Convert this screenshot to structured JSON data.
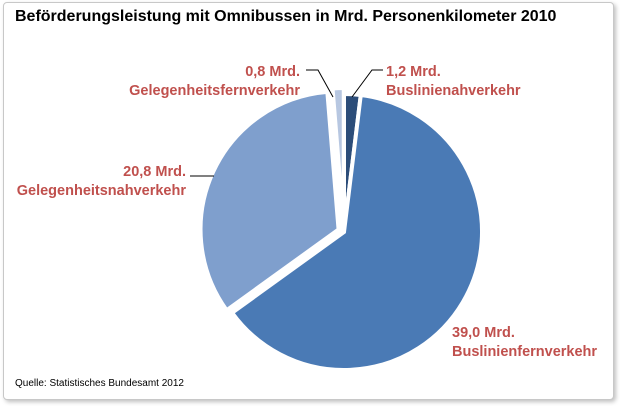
{
  "chart_data": {
    "type": "pie",
    "title": "Beförderungsleistung mit Omnibussen in Mrd. Personenkilometer 2010",
    "unit": "Mrd. Personenkilometer",
    "slices": [
      {
        "name": "Buslinienfernverkehr",
        "value": 39.0,
        "value_label": "39,0 Mrd.",
        "color": "#4a7ab5"
      },
      {
        "name": "Gelegenheitsnahverkehr",
        "value": 20.8,
        "value_label": "20,8 Mrd.",
        "color": "#7f9fcd"
      },
      {
        "name": "Gelegenheitsfernverkehr",
        "value": 0.8,
        "value_label": "0,8 Mrd.",
        "color": "#b7c7e1"
      },
      {
        "name": "Buslinienahverkehr",
        "value": 1.2,
        "value_label": "1,2 Mrd.",
        "color": "#2c4d79"
      }
    ],
    "label_color": "#c0504d",
    "legend": "none"
  },
  "source_text": "Quelle: Statistisches Bundesamt 2012"
}
